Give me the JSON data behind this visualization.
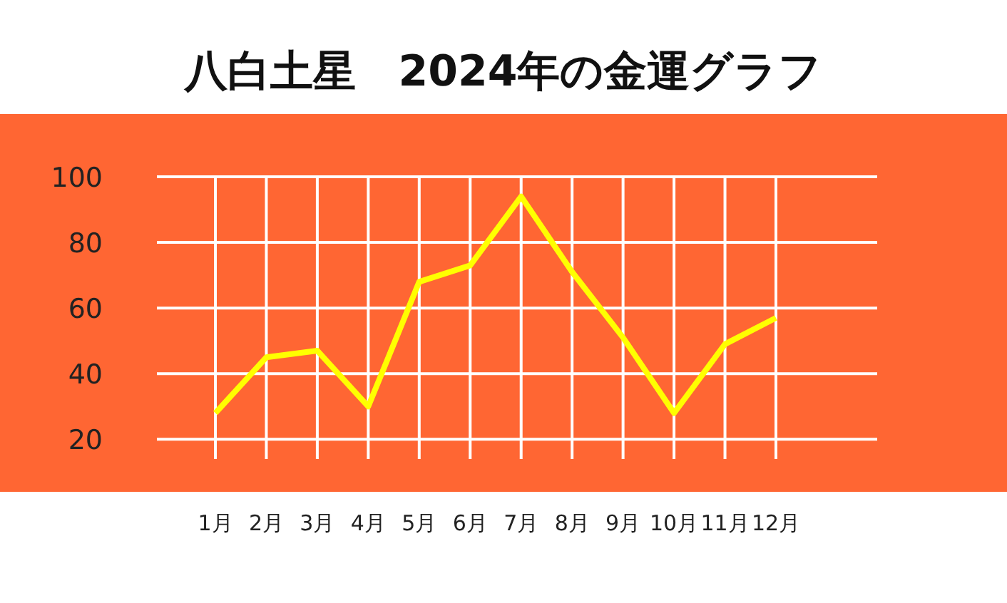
{
  "chart_data": {
    "type": "line",
    "title": "八白土星　2024年の金運グラフ",
    "categories": [
      "1月",
      "2月",
      "3月",
      "4月",
      "5月",
      "6月",
      "7月",
      "8月",
      "9月",
      "10月",
      "11月",
      "12月"
    ],
    "series": [
      {
        "color": "#ffff00",
        "values": [
          28,
          45,
          47,
          30,
          68,
          73,
          94,
          71,
          51,
          28,
          49,
          57
        ]
      }
    ],
    "ylim": [
      14,
      100
    ],
    "yticks": [
      20,
      40,
      60,
      80,
      100
    ],
    "grid": true,
    "marker": "none",
    "line_style": "solid"
  }
}
